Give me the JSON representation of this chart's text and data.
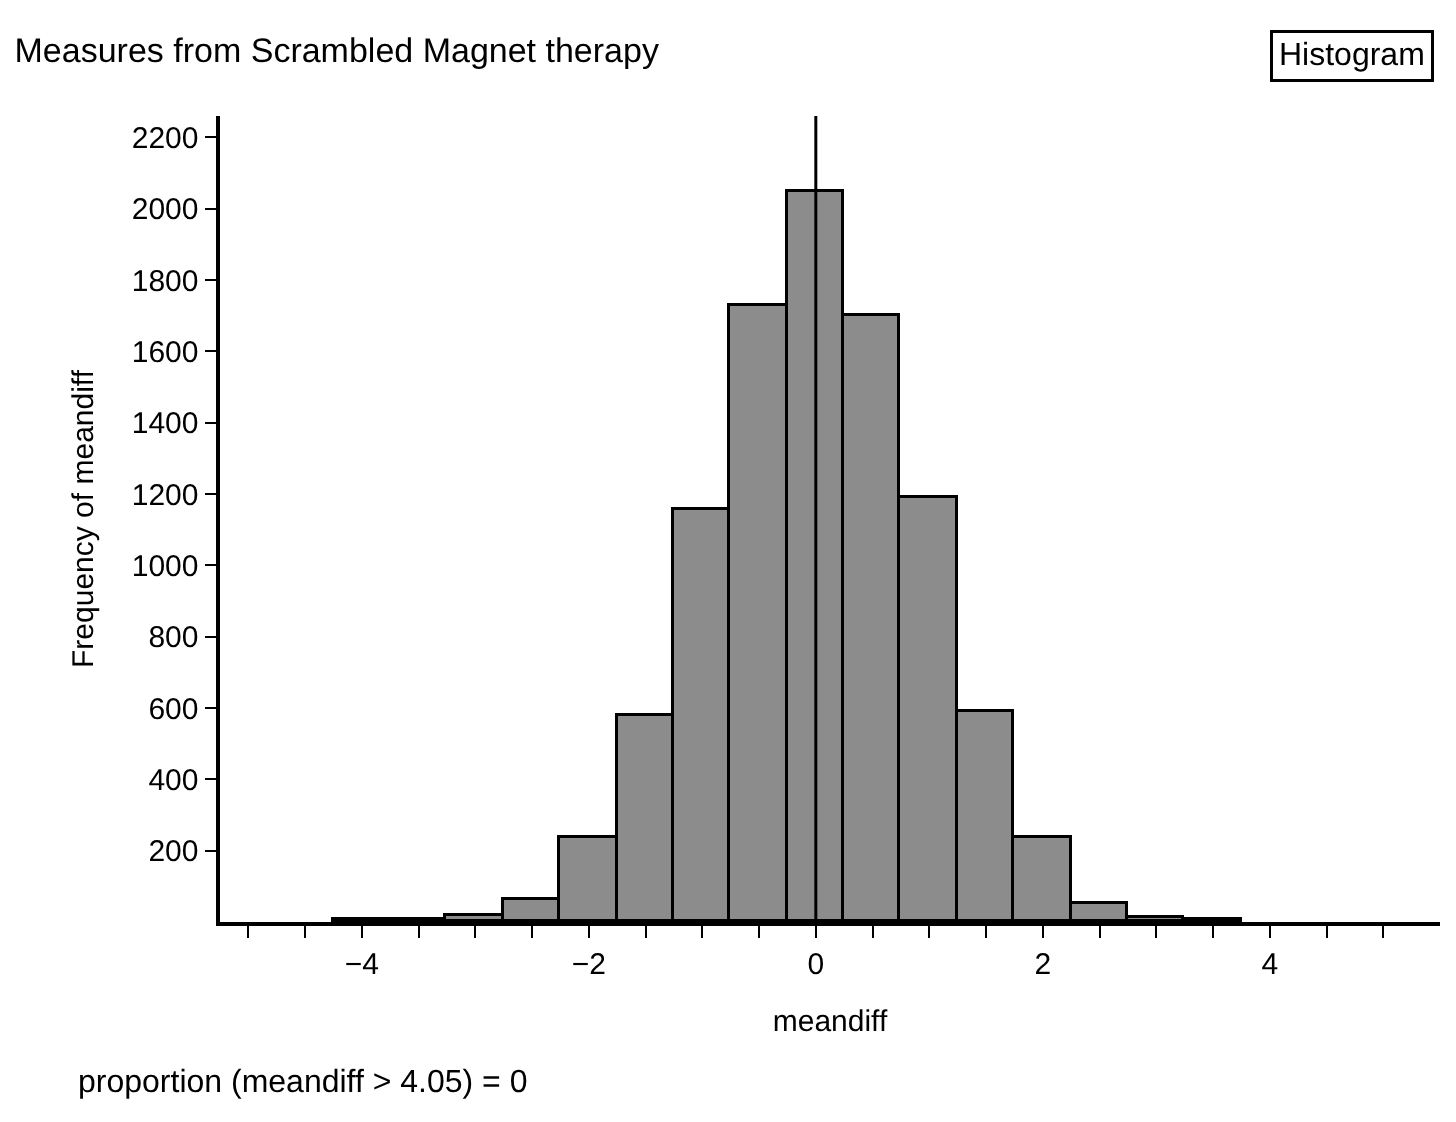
{
  "chart_data": {
    "type": "histogram",
    "title": "Measures from Scrambled Magnet therapy",
    "xlabel": "meandiff",
    "ylabel": "Frequency of meandiff",
    "bins": [
      -4.25,
      -3.75,
      -3.25,
      -2.75,
      -2.25,
      -1.75,
      -1.25,
      -0.75,
      -0.25,
      0.25,
      0.75,
      1.25,
      1.75,
      2.25,
      2.75,
      3.25,
      3.75
    ],
    "values": [
      3,
      5,
      15,
      60,
      236,
      578,
      1153,
      1726,
      2045,
      1700,
      1190,
      590,
      235,
      50,
      10,
      4
    ],
    "color": "#8c8c8c",
    "xlim": [
      -5.25,
      5.5
    ],
    "xticks": [
      {
        "value": -5,
        "label": null
      },
      {
        "value": -4.5,
        "label": null
      },
      {
        "value": -4,
        "label": "−4"
      },
      {
        "value": -3.5,
        "label": null
      },
      {
        "value": -3,
        "label": null
      },
      {
        "value": -2.5,
        "label": null
      },
      {
        "value": -2,
        "label": "−2"
      },
      {
        "value": -1.5,
        "label": null
      },
      {
        "value": -1,
        "label": null
      },
      {
        "value": -0.5,
        "label": null
      },
      0,
      {
        "value": 0.5,
        "label": null
      },
      {
        "value": 1,
        "label": null
      },
      {
        "value": 1.5,
        "label": null
      },
      2,
      {
        "value": 2.5,
        "label": null
      },
      {
        "value": 3,
        "label": null
      },
      {
        "value": 3.5,
        "label": null
      },
      4,
      {
        "value": 4.5,
        "label": null
      },
      {
        "value": 5,
        "label": null
      }
    ],
    "ylim": [
      0,
      2260
    ],
    "yticks": [
      200,
      400,
      600,
      800,
      1000,
      1200,
      1400,
      1600,
      1800,
      2000,
      2200
    ],
    "ref_lines": [
      {
        "axis": "x",
        "value": 0,
        "color": "#000000"
      }
    ],
    "annotations": [
      "Histogram",
      "proportion (meandiff > 4.05) = 0"
    ]
  }
}
